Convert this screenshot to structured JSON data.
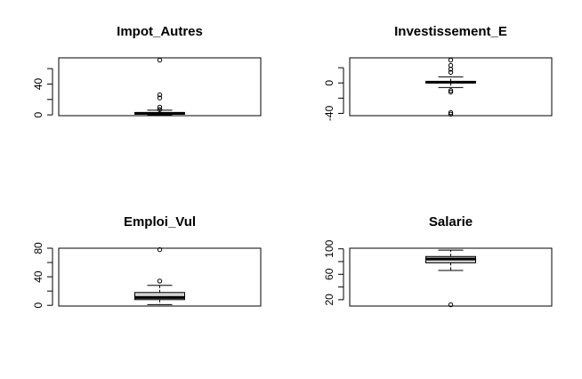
{
  "chart_data": [
    {
      "type": "boxplot",
      "title": "Impot_Autres",
      "ylim": [
        -1,
        74
      ],
      "yticks": [
        0,
        20,
        40,
        60
      ],
      "ytick_labels": [
        "0",
        "",
        "40",
        ""
      ],
      "box": {
        "min": 0,
        "q1": 1,
        "median": 2,
        "q3": 3,
        "max": 6
      },
      "outliers": [
        7,
        10,
        22,
        26,
        71
      ]
    },
    {
      "type": "boxplot",
      "title": "Investissement_E",
      "ylim": [
        -43,
        33
      ],
      "yticks": [
        -40,
        -20,
        0,
        20
      ],
      "ytick_labels": [
        "-40",
        "",
        "0",
        ""
      ],
      "box": {
        "min": -6,
        "q1": 0,
        "median": 1,
        "q3": 2,
        "max": 8
      },
      "outliers": [
        -10,
        -12,
        -39,
        -41,
        14,
        18,
        23,
        30
      ]
    },
    {
      "type": "boxplot",
      "title": "Emploi_Vul",
      "ylim": [
        -1,
        80
      ],
      "yticks": [
        0,
        20,
        40,
        60,
        80
      ],
      "ytick_labels": [
        "0",
        "",
        "40",
        "",
        "80"
      ],
      "box": {
        "min": 1,
        "q1": 8,
        "median": 11,
        "q3": 18,
        "max": 28
      },
      "outliers": [
        34,
        78
      ]
    },
    {
      "type": "boxplot",
      "title": "Salarie",
      "ylim": [
        10,
        101
      ],
      "yticks": [
        20,
        40,
        60,
        80,
        100
      ],
      "ytick_labels": [
        "20",
        "",
        "60",
        "",
        "100"
      ],
      "box": {
        "min": 66,
        "q1": 78,
        "median": 84,
        "q3": 88,
        "max": 98
      },
      "outliers": [
        12
      ]
    }
  ]
}
